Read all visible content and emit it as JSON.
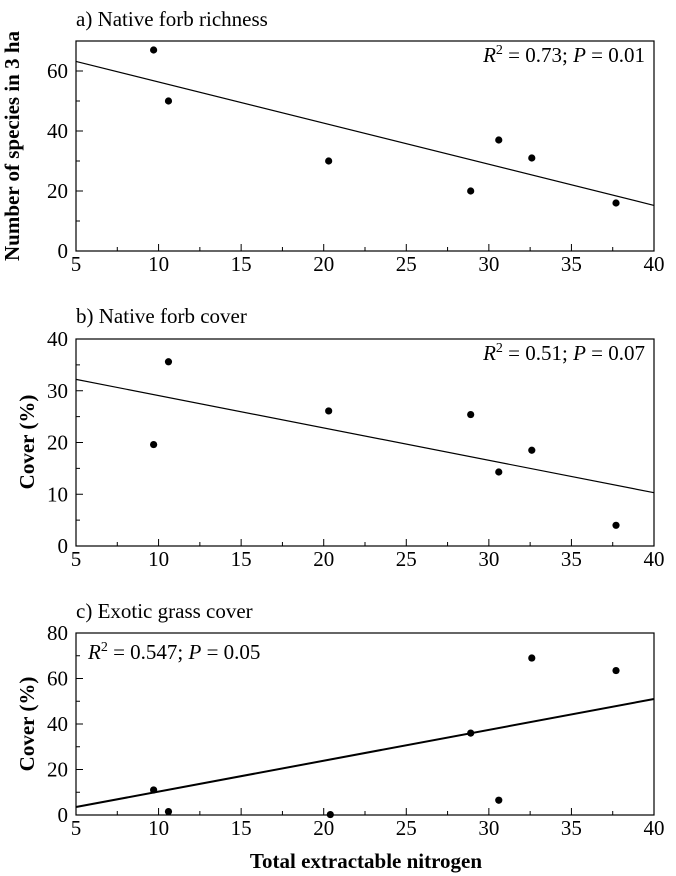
{
  "chart_data": [
    {
      "type": "scatter",
      "title": "a) Native forb richness",
      "ylabel": "Number of species in 3 ha",
      "xlabel": "",
      "xlim": [
        5,
        40
      ],
      "ylim": [
        0,
        70
      ],
      "xticks": [
        5,
        10,
        15,
        20,
        25,
        30,
        35,
        40
      ],
      "yticks": [
        0,
        20,
        40,
        60
      ],
      "stat_text": {
        "r_symbol": "R",
        "r_exp": "2",
        "r_value": " = 0.73; ",
        "p_symbol": "P",
        "p_value": " = 0.01"
      },
      "stat_position": "top-right",
      "grid": false,
      "points": [
        {
          "x": 9.7,
          "y": 67
        },
        {
          "x": 10.6,
          "y": 50
        },
        {
          "x": 20.3,
          "y": 30
        },
        {
          "x": 28.9,
          "y": 20
        },
        {
          "x": 30.6,
          "y": 37
        },
        {
          "x": 32.6,
          "y": 31
        },
        {
          "x": 37.7,
          "y": 16
        }
      ],
      "fit": [
        [
          5,
          63.2
        ],
        [
          40,
          15.2
        ]
      ]
    },
    {
      "type": "scatter",
      "title": "b) Native forb cover",
      "ylabel": "Cover (%)",
      "xlabel": "",
      "xlim": [
        5,
        40
      ],
      "ylim": [
        0,
        40
      ],
      "xticks": [
        5,
        10,
        15,
        20,
        25,
        30,
        35,
        40
      ],
      "yticks": [
        0,
        10,
        20,
        30,
        40
      ],
      "stat_text": {
        "r_symbol": "R",
        "r_exp": "2",
        "r_value": " = 0.51; ",
        "p_symbol": "P",
        "p_value": " = 0.07"
      },
      "stat_position": "top-right",
      "grid": false,
      "points": [
        {
          "x": 9.7,
          "y": 19.6
        },
        {
          "x": 10.6,
          "y": 35.6
        },
        {
          "x": 20.3,
          "y": 26.1
        },
        {
          "x": 28.9,
          "y": 25.4
        },
        {
          "x": 30.6,
          "y": 14.3
        },
        {
          "x": 32.6,
          "y": 18.5
        },
        {
          "x": 37.7,
          "y": 4.0
        }
      ],
      "fit": [
        [
          5,
          32.2
        ],
        [
          40,
          10.3
        ]
      ]
    },
    {
      "type": "scatter",
      "title": "c) Exotic grass cover",
      "ylabel": "Cover (%)",
      "xlabel": "Total extractable nitrogen",
      "xlim": [
        5,
        40
      ],
      "ylim": [
        0,
        80
      ],
      "xticks": [
        5,
        10,
        15,
        20,
        25,
        30,
        35,
        40
      ],
      "yticks": [
        0,
        20,
        40,
        60,
        80
      ],
      "stat_text": {
        "r_symbol": "R",
        "r_exp": "2",
        "r_value": " = 0.547; ",
        "p_symbol": "P",
        "p_value": " = 0.05"
      },
      "stat_position": "top-left",
      "grid": false,
      "points": [
        {
          "x": 9.7,
          "y": 11
        },
        {
          "x": 10.6,
          "y": 1.5
        },
        {
          "x": 20.4,
          "y": 0.2
        },
        {
          "x": 28.9,
          "y": 36
        },
        {
          "x": 30.6,
          "y": 6.5
        },
        {
          "x": 32.6,
          "y": 69
        },
        {
          "x": 37.7,
          "y": 63.5
        }
      ],
      "fit": [
        [
          5,
          3.5
        ],
        [
          40,
          51
        ]
      ]
    }
  ]
}
